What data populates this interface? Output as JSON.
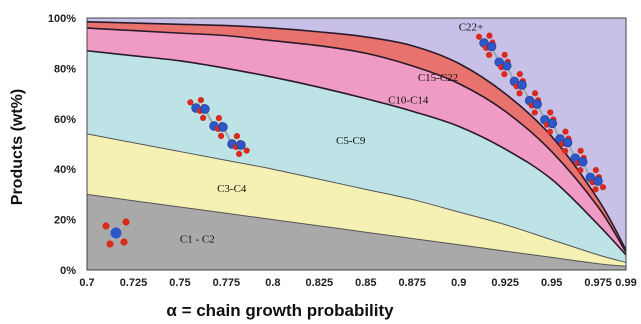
{
  "chart_data": {
    "type": "area",
    "xlabel": "α = chain growth probability",
    "ylabel": "Products (wt%)",
    "x": [
      0.7,
      0.725,
      0.75,
      0.775,
      0.8,
      0.825,
      0.85,
      0.875,
      0.9,
      0.925,
      0.95,
      0.975,
      0.99
    ],
    "xticks": [
      "0.7",
      "0.725",
      "0.75",
      "0.775",
      "0.8",
      "0.825",
      "0.85",
      "0.875",
      "0.9",
      "0.925",
      "0.95",
      "0.975",
      "0.99"
    ],
    "yticks": [
      "0%",
      "20%",
      "40%",
      "60%",
      "80%",
      "100%"
    ],
    "xlim": [
      0.7,
      0.99
    ],
    "ylim": [
      0,
      100
    ],
    "boundaries": [
      {
        "name": "C1 - C2",
        "values": [
          30,
          27.5,
          25,
          22.5,
          20,
          17.5,
          15,
          12.5,
          10,
          7.5,
          5,
          2.5,
          1.5
        ]
      },
      {
        "name": "C3-C4",
        "values": [
          54,
          50.5,
          47,
          43.5,
          40,
          36,
          32,
          28,
          23,
          18,
          12,
          6,
          3
        ]
      },
      {
        "name": "C5-C9",
        "values": [
          87,
          85,
          83,
          80,
          76.5,
          72.5,
          68,
          63,
          57,
          48,
          36,
          18,
          6
        ]
      },
      {
        "name": "C10-C14",
        "values": [
          96,
          95,
          94,
          93,
          91,
          89,
          86,
          81,
          74,
          63,
          47,
          25,
          7
        ]
      },
      {
        "name": "C15-C22",
        "values": [
          98.5,
          98,
          97.5,
          97,
          96,
          94.5,
          92.5,
          89,
          82,
          70,
          53,
          28,
          8
        ]
      },
      {
        "name": "C22+",
        "values": [
          100,
          100,
          100,
          100,
          100,
          100,
          100,
          100,
          100,
          100,
          100,
          100,
          100
        ]
      }
    ],
    "band_labels": [
      {
        "text": "C1 - C2",
        "x": 0.75,
        "y": 11
      },
      {
        "text": "C3-C4",
        "x": 0.77,
        "y": 31
      },
      {
        "text": "C5-C9",
        "x": 0.834,
        "y": 50
      },
      {
        "text": "C10-C14",
        "x": 0.862,
        "y": 66
      },
      {
        "text": "C15-C22",
        "x": 0.878,
        "y": 75
      },
      {
        "text": "C22+",
        "x": 0.9,
        "y": 95
      }
    ],
    "grid": false,
    "colors": {
      "C1 - C2": "#a9a9a9",
      "C3-C4": "#f5f0b4",
      "C5-C9": "#bde3e6",
      "C10-C14": "#ef9bc4",
      "C15-C22": "#e8736e",
      "C22+": "#c8c0e6",
      "atom_carbon": "#2f56c8",
      "atom_hydrogen": "#d92a1e"
    },
    "icons": [
      "methane-molecule-icon",
      "hexane-molecule-icon",
      "long-chain-hydrocarbon-icon"
    ]
  }
}
